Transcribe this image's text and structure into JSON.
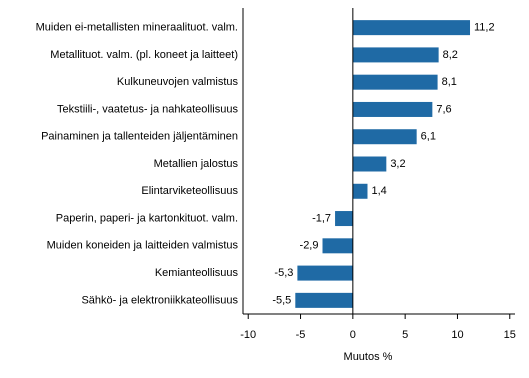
{
  "chart_data": {
    "type": "barh",
    "categories": [
      "Muiden ei-metallisten mineraalituot. valm.",
      "Metallituot. valm. (pl. koneet ja laitteet)",
      "Kulkuneuvojen valmistus",
      "Tekstiili-, vaatetus- ja nahkateollisuus",
      "Painaminen ja tallenteiden jäljentäminen",
      "Metallien jalostus",
      "Elintarviketeollisuus",
      "Paperin, paperi- ja kartonkituot. valm.",
      "Muiden koneiden ja laitteiden valmistus",
      "Kemianteollisuus",
      "Sähkö- ja elektroniikkateollisuus"
    ],
    "values": [
      11.2,
      8.2,
      8.1,
      7.6,
      6.1,
      3.2,
      1.4,
      -1.7,
      -2.9,
      -5.3,
      -5.5
    ],
    "value_labels": [
      "11,2",
      "8,2",
      "8,1",
      "7,6",
      "6,1",
      "3,2",
      "1,4",
      "-1,7",
      "-2,9",
      "-5,3",
      "-5,5"
    ],
    "color": "#1f6aa5",
    "xlabel": "Muutos %",
    "xlim": [
      -10.5,
      15.5
    ],
    "xticks": [
      -10,
      -5,
      0,
      5,
      10,
      15
    ]
  }
}
